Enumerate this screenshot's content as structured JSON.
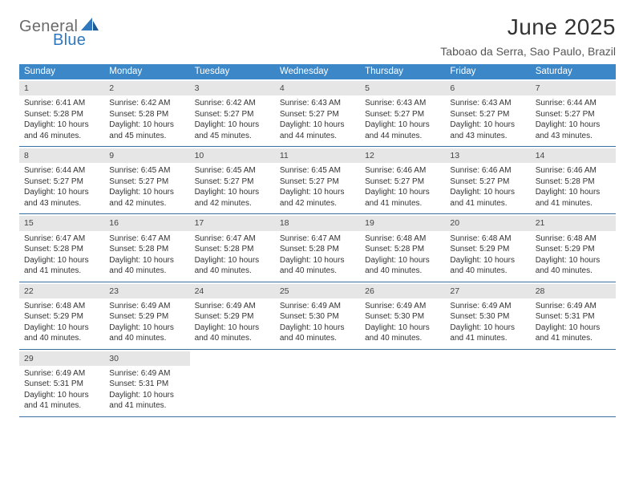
{
  "brand": {
    "a": "General",
    "b": "Blue"
  },
  "title": "June 2025",
  "location": "Taboao da Serra, Sao Paulo, Brazil",
  "colors": {
    "header_bg": "#3b87c8",
    "header_text": "#ffffff",
    "daynum_bg": "#e6e6e6",
    "rule": "#3b6f9f",
    "logo_gray": "#6a6a6a",
    "logo_blue": "#2f78bd"
  },
  "dow": [
    "Sunday",
    "Monday",
    "Tuesday",
    "Wednesday",
    "Thursday",
    "Friday",
    "Saturday"
  ],
  "weeks": [
    [
      {
        "n": "1",
        "sr": "6:41 AM",
        "ss": "5:28 PM",
        "dl": "10 hours and 46 minutes."
      },
      {
        "n": "2",
        "sr": "6:42 AM",
        "ss": "5:28 PM",
        "dl": "10 hours and 45 minutes."
      },
      {
        "n": "3",
        "sr": "6:42 AM",
        "ss": "5:27 PM",
        "dl": "10 hours and 45 minutes."
      },
      {
        "n": "4",
        "sr": "6:43 AM",
        "ss": "5:27 PM",
        "dl": "10 hours and 44 minutes."
      },
      {
        "n": "5",
        "sr": "6:43 AM",
        "ss": "5:27 PM",
        "dl": "10 hours and 44 minutes."
      },
      {
        "n": "6",
        "sr": "6:43 AM",
        "ss": "5:27 PM",
        "dl": "10 hours and 43 minutes."
      },
      {
        "n": "7",
        "sr": "6:44 AM",
        "ss": "5:27 PM",
        "dl": "10 hours and 43 minutes."
      }
    ],
    [
      {
        "n": "8",
        "sr": "6:44 AM",
        "ss": "5:27 PM",
        "dl": "10 hours and 43 minutes."
      },
      {
        "n": "9",
        "sr": "6:45 AM",
        "ss": "5:27 PM",
        "dl": "10 hours and 42 minutes."
      },
      {
        "n": "10",
        "sr": "6:45 AM",
        "ss": "5:27 PM",
        "dl": "10 hours and 42 minutes."
      },
      {
        "n": "11",
        "sr": "6:45 AM",
        "ss": "5:27 PM",
        "dl": "10 hours and 42 minutes."
      },
      {
        "n": "12",
        "sr": "6:46 AM",
        "ss": "5:27 PM",
        "dl": "10 hours and 41 minutes."
      },
      {
        "n": "13",
        "sr": "6:46 AM",
        "ss": "5:27 PM",
        "dl": "10 hours and 41 minutes."
      },
      {
        "n": "14",
        "sr": "6:46 AM",
        "ss": "5:28 PM",
        "dl": "10 hours and 41 minutes."
      }
    ],
    [
      {
        "n": "15",
        "sr": "6:47 AM",
        "ss": "5:28 PM",
        "dl": "10 hours and 41 minutes."
      },
      {
        "n": "16",
        "sr": "6:47 AM",
        "ss": "5:28 PM",
        "dl": "10 hours and 40 minutes."
      },
      {
        "n": "17",
        "sr": "6:47 AM",
        "ss": "5:28 PM",
        "dl": "10 hours and 40 minutes."
      },
      {
        "n": "18",
        "sr": "6:47 AM",
        "ss": "5:28 PM",
        "dl": "10 hours and 40 minutes."
      },
      {
        "n": "19",
        "sr": "6:48 AM",
        "ss": "5:28 PM",
        "dl": "10 hours and 40 minutes."
      },
      {
        "n": "20",
        "sr": "6:48 AM",
        "ss": "5:29 PM",
        "dl": "10 hours and 40 minutes."
      },
      {
        "n": "21",
        "sr": "6:48 AM",
        "ss": "5:29 PM",
        "dl": "10 hours and 40 minutes."
      }
    ],
    [
      {
        "n": "22",
        "sr": "6:48 AM",
        "ss": "5:29 PM",
        "dl": "10 hours and 40 minutes."
      },
      {
        "n": "23",
        "sr": "6:49 AM",
        "ss": "5:29 PM",
        "dl": "10 hours and 40 minutes."
      },
      {
        "n": "24",
        "sr": "6:49 AM",
        "ss": "5:29 PM",
        "dl": "10 hours and 40 minutes."
      },
      {
        "n": "25",
        "sr": "6:49 AM",
        "ss": "5:30 PM",
        "dl": "10 hours and 40 minutes."
      },
      {
        "n": "26",
        "sr": "6:49 AM",
        "ss": "5:30 PM",
        "dl": "10 hours and 40 minutes."
      },
      {
        "n": "27",
        "sr": "6:49 AM",
        "ss": "5:30 PM",
        "dl": "10 hours and 41 minutes."
      },
      {
        "n": "28",
        "sr": "6:49 AM",
        "ss": "5:31 PM",
        "dl": "10 hours and 41 minutes."
      }
    ],
    [
      {
        "n": "29",
        "sr": "6:49 AM",
        "ss": "5:31 PM",
        "dl": "10 hours and 41 minutes."
      },
      {
        "n": "30",
        "sr": "6:49 AM",
        "ss": "5:31 PM",
        "dl": "10 hours and 41 minutes."
      },
      null,
      null,
      null,
      null,
      null
    ]
  ],
  "labels": {
    "sunrise": "Sunrise: ",
    "sunset": "Sunset: ",
    "daylight": "Daylight: "
  }
}
